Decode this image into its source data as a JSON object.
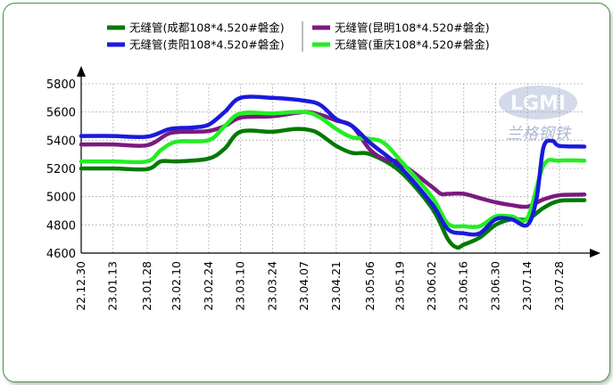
{
  "colors": {
    "border": "#3a9a3a",
    "grid": "#999999",
    "series": [
      "#007a00",
      "#1a1adc",
      "#7a1a80",
      "#22ee22"
    ]
  },
  "watermark": {
    "logo": "LGMI",
    "text": "兰格钢铁"
  },
  "chart_data": {
    "type": "line",
    "title": "",
    "xlabel": "",
    "ylabel": "",
    "ylim": [
      4600,
      5800
    ],
    "yticks": [
      4600,
      4800,
      5000,
      5200,
      5400,
      5600,
      5800
    ],
    "grid": true,
    "legend_position": "top",
    "xlim": [
      "22.12.30",
      "23.08.08"
    ],
    "x_ticks": [
      "22.12.30",
      "23.01.13",
      "23.01.28",
      "23.02.10",
      "23.02.24",
      "23.03.10",
      "23.03.24",
      "23.04.07",
      "23.04.21",
      "23.05.06",
      "23.05.19",
      "23.06.02",
      "23.06.16",
      "23.06.30",
      "23.07.14",
      "23.07.28"
    ],
    "series": [
      {
        "name": "无缝管(成都108*4.520#磐金)",
        "color": "#007a00",
        "points": [
          [
            "22.12.30",
            5200
          ],
          [
            "23.01.13",
            5200
          ],
          [
            "23.01.28",
            5195
          ],
          [
            "23.02.03",
            5250
          ],
          [
            "23.02.10",
            5250
          ],
          [
            "23.02.24",
            5270
          ],
          [
            "23.03.03",
            5340
          ],
          [
            "23.03.10",
            5460
          ],
          [
            "23.03.24",
            5460
          ],
          [
            "23.04.03",
            5480
          ],
          [
            "23.04.10",
            5470
          ],
          [
            "23.04.14",
            5440
          ],
          [
            "23.04.21",
            5360
          ],
          [
            "23.04.28",
            5310
          ],
          [
            "23.05.06",
            5300
          ],
          [
            "23.05.19",
            5180
          ],
          [
            "23.06.02",
            4920
          ],
          [
            "23.06.09",
            4700
          ],
          [
            "23.06.13",
            4640
          ],
          [
            "23.06.16",
            4660
          ],
          [
            "23.06.23",
            4710
          ],
          [
            "23.06.30",
            4800
          ],
          [
            "23.07.07",
            4840
          ],
          [
            "23.07.14",
            4840
          ],
          [
            "23.07.21",
            4920
          ],
          [
            "23.07.28",
            4970
          ],
          [
            "23.08.08",
            4975
          ]
        ]
      },
      {
        "name": "无缝管(贵阳108*4.520#磐金)",
        "color": "#1a1adc",
        "points": [
          [
            "22.12.30",
            5430
          ],
          [
            "23.01.13",
            5430
          ],
          [
            "23.01.28",
            5425
          ],
          [
            "23.02.07",
            5480
          ],
          [
            "23.02.17",
            5490
          ],
          [
            "23.02.24",
            5510
          ],
          [
            "23.03.03",
            5600
          ],
          [
            "23.03.10",
            5700
          ],
          [
            "23.03.24",
            5700
          ],
          [
            "23.04.07",
            5680
          ],
          [
            "23.04.14",
            5650
          ],
          [
            "23.04.21",
            5550
          ],
          [
            "23.04.28",
            5500
          ],
          [
            "23.05.06",
            5380
          ],
          [
            "23.05.19",
            5210
          ],
          [
            "23.06.02",
            4950
          ],
          [
            "23.06.09",
            4770
          ],
          [
            "23.06.16",
            4740
          ],
          [
            "23.06.23",
            4740
          ],
          [
            "23.06.30",
            4840
          ],
          [
            "23.07.07",
            4840
          ],
          [
            "23.07.14",
            4800
          ],
          [
            "23.07.18",
            4990
          ],
          [
            "23.07.21",
            5350
          ],
          [
            "23.07.25",
            5395
          ],
          [
            "23.07.28",
            5360
          ],
          [
            "23.08.08",
            5355
          ]
        ]
      },
      {
        "name": "无缝管(昆明108*4.520#磐金)",
        "color": "#7a1a80",
        "points": [
          [
            "22.12.30",
            5370
          ],
          [
            "23.01.13",
            5370
          ],
          [
            "23.01.28",
            5365
          ],
          [
            "23.02.07",
            5450
          ],
          [
            "23.02.17",
            5460
          ],
          [
            "23.02.24",
            5465
          ],
          [
            "23.03.03",
            5500
          ],
          [
            "23.03.10",
            5560
          ],
          [
            "23.03.24",
            5570
          ],
          [
            "23.04.07",
            5600
          ],
          [
            "23.04.14",
            5580
          ],
          [
            "23.04.21",
            5540
          ],
          [
            "23.04.28",
            5500
          ],
          [
            "23.05.06",
            5330
          ],
          [
            "23.05.13",
            5260
          ],
          [
            "23.05.19",
            5240
          ],
          [
            "23.06.02",
            5070
          ],
          [
            "23.06.06",
            5020
          ],
          [
            "23.06.09",
            5020
          ],
          [
            "23.06.16",
            5020
          ],
          [
            "23.06.23",
            4990
          ],
          [
            "23.06.30",
            4960
          ],
          [
            "23.07.07",
            4940
          ],
          [
            "23.07.14",
            4930
          ],
          [
            "23.07.21",
            4980
          ],
          [
            "23.07.28",
            5010
          ],
          [
            "23.08.08",
            5015
          ]
        ]
      },
      {
        "name": "无缝管(重庆108*4.520#磐金)",
        "color": "#22ee22",
        "points": [
          [
            "22.12.30",
            5250
          ],
          [
            "23.01.13",
            5250
          ],
          [
            "23.01.28",
            5250
          ],
          [
            "23.02.03",
            5330
          ],
          [
            "23.02.10",
            5390
          ],
          [
            "23.02.24",
            5400
          ],
          [
            "23.03.03",
            5500
          ],
          [
            "23.03.10",
            5590
          ],
          [
            "23.03.24",
            5590
          ],
          [
            "23.04.07",
            5600
          ],
          [
            "23.04.14",
            5560
          ],
          [
            "23.04.21",
            5480
          ],
          [
            "23.04.28",
            5420
          ],
          [
            "23.05.06",
            5410
          ],
          [
            "23.05.12",
            5380
          ],
          [
            "23.05.19",
            5260
          ],
          [
            "23.06.02",
            5000
          ],
          [
            "23.06.09",
            4810
          ],
          [
            "23.06.16",
            4790
          ],
          [
            "23.06.23",
            4790
          ],
          [
            "23.06.30",
            4860
          ],
          [
            "23.07.07",
            4860
          ],
          [
            "23.07.14",
            4850
          ],
          [
            "23.07.21",
            5220
          ],
          [
            "23.07.28",
            5255
          ],
          [
            "23.08.08",
            5255
          ]
        ]
      }
    ]
  }
}
